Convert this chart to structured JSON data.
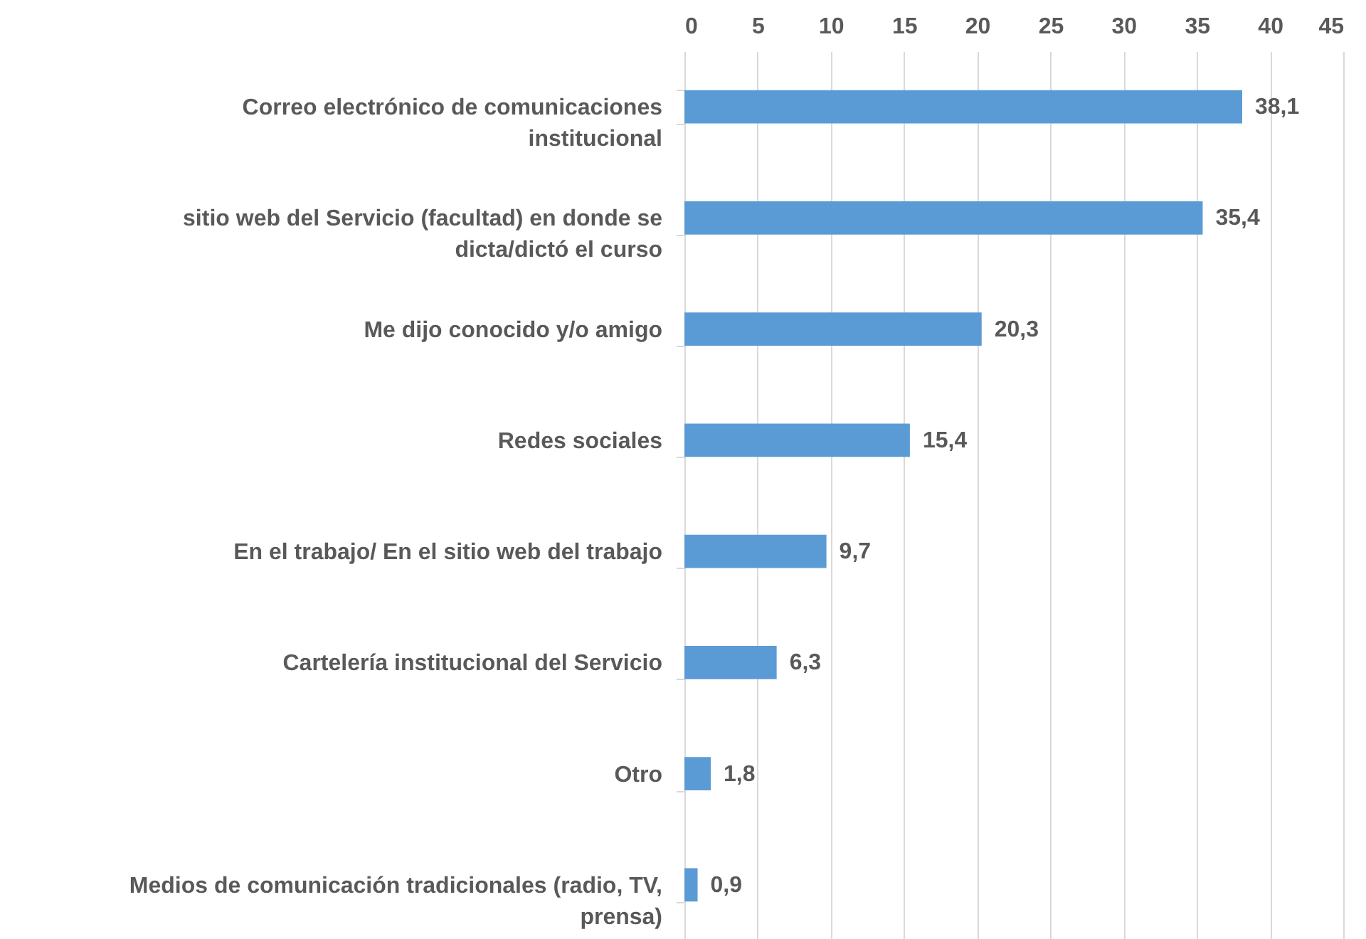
{
  "chart_data": {
    "type": "bar",
    "orientation": "horizontal",
    "categories": [
      "Correo electrónico de comunicaciones institucional",
      "sitio web del Servicio (facultad) en donde se dicta/dictó el curso",
      "Me dijo conocido y/o amigo",
      "Redes sociales",
      "En el trabajo/ En el sitio web del trabajo",
      "Cartelería institucional del Servicio",
      "Otro",
      "Medios de comunicación tradicionales (radio, TV, prensa)"
    ],
    "values": [
      38.1,
      35.4,
      20.3,
      15.4,
      9.7,
      6.3,
      1.8,
      0.9
    ],
    "value_labels": [
      "38,1",
      "35,4",
      "20,3",
      "15,4",
      "9,7",
      "6,3",
      "1,8",
      "0,9"
    ],
    "color": "#5b9bd5",
    "xlim": [
      0,
      45
    ],
    "xticks": [
      0,
      5,
      10,
      15,
      20,
      25,
      30,
      35,
      40,
      45
    ],
    "grid": "x"
  }
}
